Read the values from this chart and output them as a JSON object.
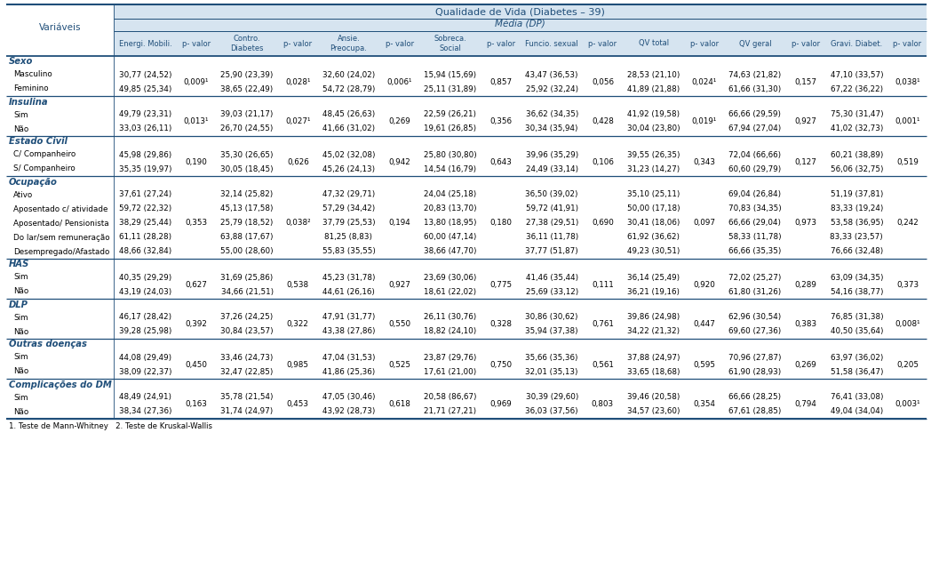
{
  "title": "Qualidade de Vida (Diabetes – 39)",
  "subtitle": "Média (DP)",
  "col_headers": [
    "Energi. Mobili.",
    "p- valor",
    "Contro.\nDiabetes",
    "p- valor",
    "Ansie.\nPreocupa.",
    "p- valor",
    "Sobreca.\nSocial",
    "p- valor",
    "Funcio. sexual",
    "p- valor",
    "QV total",
    "p- valor",
    "QV geral",
    "p- valor",
    "Gravi. Diabet.",
    "p- valor"
  ],
  "sections": [
    {
      "header": "Sexo",
      "rows": [
        {
          "label": "Masculino",
          "vals": [
            "30,77 (24,52)",
            "25,90 (23,39)",
            "32,60 (24,02)",
            "15,94 (15,69)",
            "43,47 (36,53)",
            "28,53 (21,10)",
            "74,63 (21,82)",
            "47,10 (33,57)"
          ]
        },
        {
          "label": "Feminino",
          "vals": [
            "49,85 (25,34)",
            "38,65 (22,49)",
            "54,72 (28,79)",
            "25,11 (31,89)",
            "25,92 (32,24)",
            "41,89 (21,88)",
            "61,66 (31,30)",
            "67,22 (36,22)"
          ]
        }
      ],
      "pvals": [
        "0,009¹",
        "0,028¹",
        "0,006¹",
        "0,857",
        "0,056",
        "0,024¹",
        "0,157",
        "0,038¹"
      ]
    },
    {
      "header": "Insulina",
      "rows": [
        {
          "label": "Sim",
          "vals": [
            "49,79 (23,31)",
            "39,03 (21,17)",
            "48,45 (26,63)",
            "22,59 (26,21)",
            "36,62 (34,35)",
            "41,92 (19,58)",
            "66,66 (29,59)",
            "75,30 (31,47)"
          ]
        },
        {
          "label": "Não",
          "vals": [
            "33,03 (26,11)",
            "26,70 (24,55)",
            "41,66 (31,02)",
            "19,61 (26,85)",
            "30,34 (35,94)",
            "30,04 (23,80)",
            "67,94 (27,04)",
            "41,02 (32,73)"
          ]
        }
      ],
      "pvals": [
        "0,013¹",
        "0,027¹",
        "0,269",
        "0,356",
        "0,428",
        "0,019¹",
        "0,927",
        "0,001¹"
      ]
    },
    {
      "header": "Estado Civil",
      "rows": [
        {
          "label": "C/ Companheiro",
          "vals": [
            "45,98 (29,86)",
            "35,30 (26,65)",
            "45,02 (32,08)",
            "25,80 (30,80)",
            "39,96 (35,29)",
            "39,55 (26,35)",
            "72,04 (66,66)",
            "60,21 (38,89)"
          ]
        },
        {
          "label": "S/ Companheiro",
          "vals": [
            "35,35 (19,97)",
            "30,05 (18,45)",
            "45,26 (24,13)",
            "14,54 (16,79)",
            "24,49 (33,14)",
            "31,23 (14,27)",
            "60,60 (29,79)",
            "56,06 (32,75)"
          ]
        }
      ],
      "pvals": [
        "0,190",
        "0,626",
        "0,942",
        "0,643",
        "0,106",
        "0,343",
        "0,127",
        "0,519"
      ]
    },
    {
      "header": "Ocupação",
      "rows": [
        {
          "label": "Ativo",
          "vals": [
            "37,61 (27,24)",
            "32,14 (25,82)",
            "47,32 (29,71)",
            "24,04 (25,18)",
            "36,50 (39,02)",
            "35,10 (25,11)",
            "69,04 (26,84)",
            "51,19 (37,81)"
          ]
        },
        {
          "label": "Aposentado c/ atividade",
          "vals": [
            "59,72 (22,32)",
            "45,13 (17,58)",
            "57,29 (34,42)",
            "20,83 (13,70)",
            "59,72 (41,91)",
            "50,00 (17,18)",
            "70,83 (34,35)",
            "83,33 (19,24)"
          ]
        },
        {
          "label": "Aposentado/ Pensionista",
          "vals": [
            "38,29 (25,44)",
            "25,79 (18,52)",
            "37,79 (25,53)",
            "13,80 (18,95)",
            "27,38 (29,51)",
            "30,41 (18,06)",
            "66,66 (29,04)",
            "53,58 (36,95)"
          ]
        },
        {
          "label": "Do lar/sem remuneração",
          "vals": [
            "61,11 (28,28)",
            "63,88 (17,67)",
            "81,25 (8,83)",
            "60,00 (47,14)",
            "36,11 (11,78)",
            "61,92 (36,62)",
            "58,33 (11,78)",
            "83,33 (23,57)"
          ]
        },
        {
          "label": "Desempregado/Afastado",
          "vals": [
            "48,66 (32,84)",
            "55,00 (28,60)",
            "55,83 (35,55)",
            "38,66 (47,70)",
            "37,77 (51,87)",
            "49,23 (30,51)",
            "66,66 (35,35)",
            "76,66 (32,48)"
          ]
        }
      ],
      "pvals": [
        "0,353",
        "0,038²",
        "0,194",
        "0,180",
        "0,690",
        "0,097",
        "0,973",
        "0,242"
      ],
      "pval_row": 2
    },
    {
      "header": "HAS",
      "rows": [
        {
          "label": "Sim",
          "vals": [
            "40,35 (29,29)",
            "31,69 (25,86)",
            "45,23 (31,78)",
            "23,69 (30,06)",
            "41,46 (35,44)",
            "36,14 (25,49)",
            "72,02 (25,27)",
            "63,09 (34,35)"
          ]
        },
        {
          "label": "Não",
          "vals": [
            "43,19 (24,03)",
            "34,66 (21,51)",
            "44,61 (26,16)",
            "18,61 (22,02)",
            "25,69 (33,12)",
            "36,21 (19,16)",
            "61,80 (31,26)",
            "54,16 (38,77)"
          ]
        }
      ],
      "pvals": [
        "0,627",
        "0,538",
        "0,927",
        "0,775",
        "0,111",
        "0,920",
        "0,289",
        "0,373"
      ]
    },
    {
      "header": "DLP",
      "rows": [
        {
          "label": "Sim",
          "vals": [
            "46,17 (28,42)",
            "37,26 (24,25)",
            "47,91 (31,77)",
            "26,11 (30,76)",
            "30,86 (30,62)",
            "39,86 (24,98)",
            "62,96 (30,54)",
            "76,85 (31,38)"
          ]
        },
        {
          "label": "Não",
          "vals": [
            "39,28 (25,98)",
            "30,84 (23,57)",
            "43,38 (27,86)",
            "18,82 (24,10)",
            "35,94 (37,38)",
            "34,22 (21,32)",
            "69,60 (27,36)",
            "40,50 (35,64)"
          ]
        }
      ],
      "pvals": [
        "0,392",
        "0,322",
        "0,550",
        "0,328",
        "0,761",
        "0,447",
        "0,383",
        "0,008¹"
      ]
    },
    {
      "header": "Outras doenças",
      "rows": [
        {
          "label": "Sim",
          "vals": [
            "44,08 (29,49)",
            "33,46 (24,73)",
            "47,04 (31,53)",
            "23,87 (29,76)",
            "35,66 (35,36)",
            "37,88 (24,97)",
            "70,96 (27,87)",
            "63,97 (36,02)"
          ]
        },
        {
          "label": "Não",
          "vals": [
            "38,09 (22,37)",
            "32,47 (22,85)",
            "41,86 (25,36)",
            "17,61 (21,00)",
            "32,01 (35,13)",
            "33,65 (18,68)",
            "61,90 (28,93)",
            "51,58 (36,47)"
          ]
        }
      ],
      "pvals": [
        "0,450",
        "0,985",
        "0,525",
        "0,750",
        "0,561",
        "0,595",
        "0,269",
        "0,205"
      ]
    },
    {
      "header": "Complicações do DM",
      "rows": [
        {
          "label": "Sim",
          "vals": [
            "48,49 (24,91)",
            "35,78 (21,54)",
            "47,05 (30,46)",
            "20,58 (86,67)",
            "30,39 (29,60)",
            "39,46 (20,58)",
            "66,66 (28,25)",
            "76,41 (33,08)"
          ]
        },
        {
          "label": "Não",
          "vals": [
            "38,34 (27,36)",
            "31,74 (24,97)",
            "43,92 (28,73)",
            "21,71 (27,21)",
            "36,03 (37,56)",
            "34,57 (23,60)",
            "67,61 (28,85)",
            "49,04 (34,04)"
          ]
        }
      ],
      "pvals": [
        "0,163",
        "0,453",
        "0,618",
        "0,969",
        "0,803",
        "0,354",
        "0,794",
        "0,003¹"
      ]
    }
  ],
  "footnote": "1. Teste de Mann-Whitney   2. Teste de Kruskal-Wallis",
  "header_bg": "#d6e4f0",
  "section_header_color": "#1f4e79",
  "text_color": "#000000",
  "header_text_color": "#1f4e79",
  "border_color": "#1f4e79",
  "pval_positions": {
    "Sexo": [
      1,
      2,
      3,
      4,
      5,
      6,
      7,
      8
    ],
    "Insulina": [
      1,
      2,
      3,
      4,
      5,
      6,
      7,
      8
    ],
    "Estado Civil": [
      1,
      2,
      3,
      4,
      5,
      6,
      7,
      8
    ],
    "HAS": [
      1,
      2,
      3,
      4,
      5,
      6,
      7,
      8
    ],
    "DLP": [
      1,
      2,
      3,
      4,
      5,
      6,
      7,
      8
    ],
    "Outras doenças": [
      1,
      2,
      3,
      4,
      5,
      6,
      7,
      8
    ],
    "Complicações do DM": [
      1,
      2,
      3,
      4,
      5,
      6,
      7,
      8
    ]
  }
}
